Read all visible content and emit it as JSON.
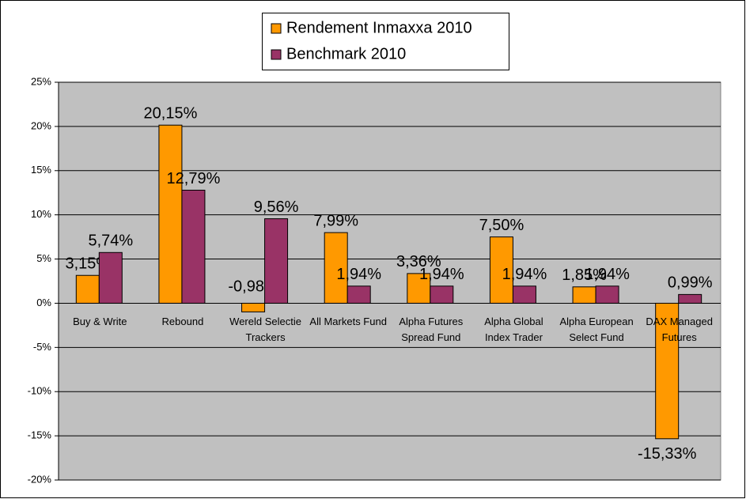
{
  "chart_data": {
    "type": "bar",
    "categories": [
      "Buy & Write",
      "Rebound",
      "Wereld Selectie Trackers",
      "All Markets Fund",
      "Alpha Futures Spread Fund",
      "Alpha Global Index Trader",
      "Alpha European Select Fund",
      "DAX Managed Futures"
    ],
    "series": [
      {
        "name": "Rendement Inmaxxa 2010",
        "color": "#ff9900",
        "values": [
          3.15,
          20.15,
          -0.98,
          7.99,
          3.36,
          7.5,
          1.85,
          -15.33
        ],
        "value_labels": [
          "3,15%",
          "20,15%",
          "-0,98%",
          "7,99%",
          "3,36%",
          "7,50%",
          "1,85%",
          "-15,33%"
        ]
      },
      {
        "name": "Benchmark 2010",
        "color": "#993366",
        "values": [
          5.74,
          12.79,
          9.56,
          1.94,
          1.94,
          1.94,
          1.94,
          0.99
        ],
        "value_labels": [
          "5,74%",
          "12,79%",
          "9,56%",
          "1,94%",
          "1,94%",
          "1,94%",
          "1,94%",
          "0,99%"
        ]
      }
    ],
    "ylim": [
      -20,
      25
    ],
    "yticks": [
      {
        "value": -20,
        "label": "-20%"
      },
      {
        "value": -15,
        "label": "-15%"
      },
      {
        "value": -10,
        "label": "-10%"
      },
      {
        "value": -5,
        "label": "-5%"
      },
      {
        "value": 0,
        "label": "0%"
      },
      {
        "value": 5,
        "label": "5%"
      },
      {
        "value": 10,
        "label": "10%"
      },
      {
        "value": 15,
        "label": "15%"
      },
      {
        "value": 20,
        "label": "20%"
      },
      {
        "value": 25,
        "label": "25%"
      }
    ],
    "grid": true,
    "legend": "top"
  }
}
